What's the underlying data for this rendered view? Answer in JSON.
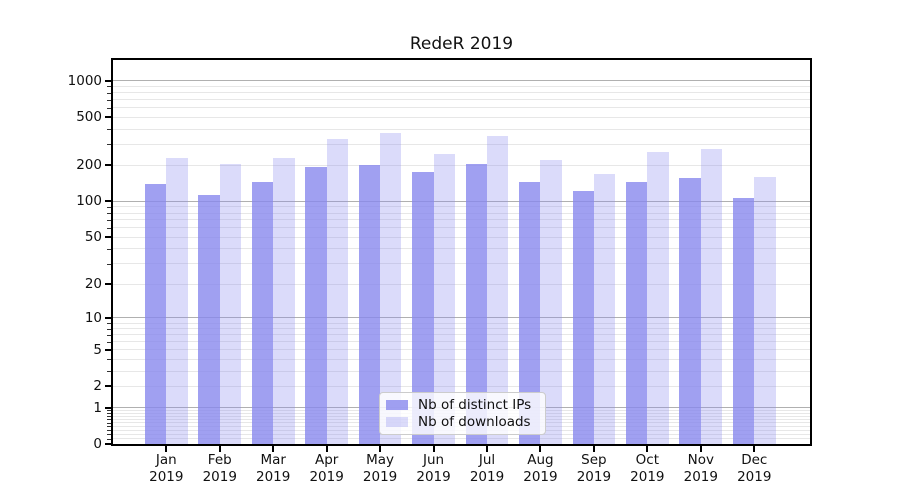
{
  "chart_data": {
    "type": "bar",
    "title": "RedeR 2019",
    "categories": [
      "Jan",
      "Feb",
      "Mar",
      "Apr",
      "May",
      "Jun",
      "Jul",
      "Aug",
      "Sep",
      "Oct",
      "Nov",
      "Dec"
    ],
    "x_year_label": "2019",
    "series": [
      {
        "name": "Nb of distinct IPs",
        "color": "rgba(136,136,238,0.8)",
        "values": [
          140,
          113,
          146,
          193,
          203,
          175,
          205,
          145,
          122,
          146,
          157,
          107
        ]
      },
      {
        "name": "Nb of downloads",
        "color": "rgba(136,136,238,0.3)",
        "values": [
          230,
          205,
          228,
          330,
          374,
          248,
          353,
          223,
          171,
          256,
          271,
          160
        ]
      }
    ],
    "y_axis": {
      "scale": "log1p",
      "ylim": [
        0,
        1435
      ],
      "ticks": [
        {
          "label": "1000",
          "value": 1000
        },
        {
          "label": "500",
          "value": 500
        },
        {
          "label": "200",
          "value": 200
        },
        {
          "label": "100",
          "value": 100
        },
        {
          "label": "50",
          "value": 50
        },
        {
          "label": "20",
          "value": 20
        },
        {
          "label": "10",
          "value": 10
        },
        {
          "label": "5",
          "value": 5
        },
        {
          "label": "2",
          "value": 2
        },
        {
          "label": "1",
          "value": 1
        },
        {
          "label": "0",
          "value": 0
        }
      ],
      "major_gridlines": [
        1,
        10,
        100,
        1000
      ],
      "minor_gridlines": [
        0.1,
        0.2,
        0.3,
        0.4,
        0.5,
        0.6,
        0.7,
        0.8,
        0.9,
        2,
        3,
        4,
        5,
        6,
        7,
        8,
        9,
        20,
        30,
        40,
        50,
        60,
        70,
        80,
        90,
        200,
        300,
        400,
        500,
        600,
        700,
        800,
        900
      ],
      "grid": true
    },
    "legend": {
      "position": "lower center"
    },
    "colors": {
      "grid_major": "#b0b0b0",
      "grid_minor": "#e7e7e7",
      "spine": "#000000",
      "background": "#ffffff"
    }
  }
}
